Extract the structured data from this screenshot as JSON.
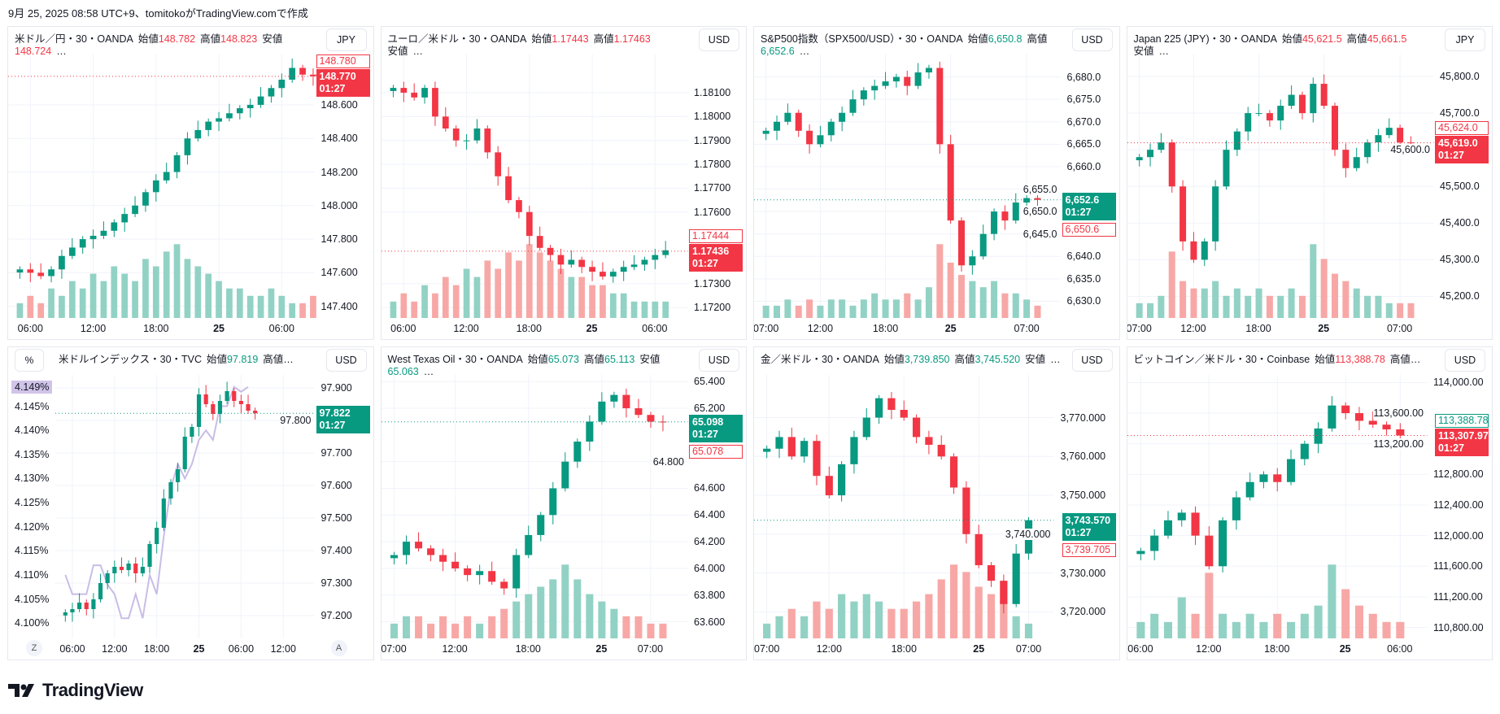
{
  "stamp": "9月 25, 2025 08:58 UTC+9、tomitokoがTradingView.comで作成",
  "logo": "TradingView",
  "colors": {
    "up": "#089981",
    "down": "#f23645",
    "vol_up": "#92d2c5",
    "vol_down": "#f7a8a6",
    "line": "#c9bde6"
  },
  "chart_data": [
    {
      "type": "candlestick",
      "title": "米ドル／円・30・OANDA",
      "open_label": "始値",
      "open": "148.782",
      "high_label": "高値",
      "high": "148.823",
      "low_label": "安値",
      "low": "148.724",
      "ellipsis": "…",
      "value_color": "down",
      "currency": "JPY",
      "ylim": [
        147.35,
        148.9
      ],
      "yticks": [
        "148.600",
        "148.400",
        "148.200",
        "148.000",
        "147.800",
        "147.600",
        "147.400"
      ],
      "x_range": [
        0,
        28
      ],
      "xticks": [
        {
          "label": "06:00",
          "bar": 1
        },
        {
          "label": "12:00",
          "bar": 7
        },
        {
          "label": "18:00",
          "bar": 13
        },
        {
          "label": "25",
          "bar": 19,
          "bold": true
        },
        {
          "label": "06:00",
          "bar": 25
        }
      ],
      "closes": [
        147.62,
        147.6,
        147.58,
        147.62,
        147.7,
        147.75,
        147.8,
        147.82,
        147.85,
        147.9,
        147.95,
        148.0,
        148.08,
        148.15,
        148.2,
        148.3,
        148.4,
        148.45,
        148.5,
        148.52,
        148.55,
        148.58,
        148.6,
        148.65,
        148.7,
        148.75,
        148.82,
        148.78,
        148.77
      ],
      "volume": [
        2,
        3,
        2,
        4,
        3,
        5,
        4,
        6,
        5,
        7,
        6,
        5,
        8,
        7,
        9,
        10,
        8,
        7,
        6,
        5,
        4,
        4,
        3,
        3,
        4,
        3,
        2,
        2,
        3
      ],
      "last": {
        "value": 148.77,
        "label": "148.770",
        "countdown": "01:27",
        "color": "down"
      },
      "prev": {
        "value": 148.78,
        "label": "148.780",
        "color": "down"
      }
    },
    {
      "type": "candlestick",
      "title": "ユーロ／米ドル・30・OANDA",
      "open_label": "始値",
      "open": "1.17443",
      "high_label": "高値",
      "high": "1.17463",
      "low_label": "安値",
      "low": "",
      "ellipsis": "…",
      "value_color": "down",
      "currency": "USD",
      "ylim": [
        1.1717,
        1.1826
      ],
      "yticks": [
        "1.18100",
        "1.18000",
        "1.17900",
        "1.17800",
        "1.17700",
        "1.17600",
        "1.17300",
        "1.17200"
      ],
      "ytick_values": [
        1.181,
        1.18,
        1.179,
        1.178,
        1.177,
        1.176,
        1.173,
        1.172
      ],
      "x_range": [
        0,
        28
      ],
      "xticks": [
        {
          "label": "06:00",
          "bar": 1
        },
        {
          "label": "12:00",
          "bar": 7
        },
        {
          "label": "18:00",
          "bar": 13
        },
        {
          "label": "25",
          "bar": 19,
          "bold": true
        },
        {
          "label": "06:00",
          "bar": 25
        }
      ],
      "closes": [
        1.1812,
        1.181,
        1.1808,
        1.1812,
        1.18,
        1.1795,
        1.179,
        1.179,
        1.1795,
        1.1785,
        1.1775,
        1.1765,
        1.176,
        1.175,
        1.1745,
        1.1742,
        1.1738,
        1.174,
        1.1737,
        1.1735,
        1.1733,
        1.1735,
        1.1737,
        1.1738,
        1.174,
        1.1742,
        1.1744
      ],
      "volume": [
        2,
        3,
        2,
        4,
        3,
        5,
        4,
        6,
        5,
        7,
        6,
        8,
        7,
        9,
        8,
        7,
        6,
        5,
        5,
        4,
        4,
        3,
        3,
        2,
        2,
        2,
        2
      ],
      "last": {
        "value": 1.17436,
        "label": "1.17436",
        "countdown": "01:27",
        "color": "down"
      },
      "prev": {
        "value": 1.17444,
        "label": "1.17444",
        "color": "down"
      }
    },
    {
      "type": "candlestick",
      "title": "S&P500指数（SPX500/USD）・30・OANDA",
      "open_label": "始値",
      "open": "6,650.8",
      "high_label": "高値",
      "high": "6,652.6",
      "ellipsis": "…",
      "value_color": "up",
      "currency": "USD",
      "ylim": [
        6627,
        6685
      ],
      "yticks": [
        "6,680.0",
        "6,675.0",
        "6,670.0",
        "6,665.0",
        "6,660.0",
        "6,655.0",
        "6,650.0",
        "6,645.0",
        "6,640.0",
        "6,635.0",
        "6,630.0"
      ],
      "ytick_values": [
        6680,
        6675,
        6670,
        6665,
        6660,
        6655,
        6650,
        6645,
        6640,
        6635,
        6630
      ],
      "x_range": [
        0,
        27
      ],
      "xticks": [
        {
          "label": "07:00",
          "bar": 0
        },
        {
          "label": "12:00",
          "bar": 5
        },
        {
          "label": "18:00",
          "bar": 11
        },
        {
          "label": "25",
          "bar": 17,
          "bold": true
        },
        {
          "label": "07:00",
          "bar": 24
        }
      ],
      "closes": [
        6668,
        6670,
        6672,
        6668,
        6665,
        6667,
        6670,
        6672,
        6675,
        6677,
        6678,
        6679,
        6680,
        6678,
        6681,
        6682,
        6665,
        6648,
        6638,
        6640,
        6645,
        6650,
        6648,
        6652,
        6653,
        6652.6
      ],
      "volume": [
        2,
        2,
        3,
        2,
        3,
        2,
        3,
        3,
        2,
        3,
        4,
        3,
        3,
        4,
        3,
        5,
        12,
        9,
        7,
        6,
        5,
        6,
        4,
        4,
        3,
        2
      ],
      "last": {
        "value": 6652.6,
        "label": "6,652.6",
        "countdown": "01:27",
        "color": "up"
      },
      "prev": {
        "value": 6650.6,
        "label": "6,650.6",
        "color": "down"
      }
    },
    {
      "type": "candlestick",
      "title": "Japan 225 (JPY)・30・OANDA",
      "open_label": "始値",
      "open": "45,621.5",
      "high_label": "高値",
      "high": "45,661.5",
      "low_label": "安値",
      "low": "",
      "ellipsis": "…",
      "value_color": "down",
      "currency": "JPY",
      "ylim": [
        45150,
        45860
      ],
      "yticks": [
        "45,800.0",
        "45,700.0",
        "45,600.0",
        "45,500.0",
        "45,400.0",
        "45,300.0",
        "45,200.0"
      ],
      "ytick_values": [
        45800,
        45700,
        45600,
        45500,
        45400,
        45300,
        45200
      ],
      "x_range": [
        0,
        27
      ],
      "xticks": [
        {
          "label": "07:00",
          "bar": 0
        },
        {
          "label": "12:00",
          "bar": 5
        },
        {
          "label": "18:00",
          "bar": 11
        },
        {
          "label": "25",
          "bar": 17,
          "bold": true
        },
        {
          "label": "07:00",
          "bar": 24
        }
      ],
      "closes": [
        45580,
        45600,
        45620,
        45500,
        45350,
        45300,
        45350,
        45500,
        45600,
        45650,
        45700,
        45700,
        45680,
        45720,
        45750,
        45700,
        45780,
        45720,
        45600,
        45550,
        45580,
        45620,
        45640,
        45660,
        45620,
        45619
      ],
      "volume": [
        2,
        2,
        3,
        9,
        5,
        4,
        4,
        5,
        3,
        4,
        3,
        4,
        3,
        3,
        4,
        3,
        10,
        8,
        6,
        5,
        4,
        3,
        3,
        2,
        2,
        2
      ],
      "last": {
        "value": 45619,
        "label": "45,619.0",
        "countdown": "01:27",
        "color": "down"
      },
      "prev": {
        "value": 45624,
        "label": "45,624.0",
        "color": "down"
      }
    },
    {
      "type": "candlestick",
      "title": "米ドルインデックス・30・TVC",
      "open_label": "始値",
      "open": "97.819",
      "high_label": "高値",
      "ellipsis": "…",
      "value_color": "up",
      "currency": "USD",
      "left_axis_button": "%",
      "ylim": [
        97.14,
        97.94
      ],
      "yticks": [
        "97.900",
        "97.800",
        "97.700",
        "97.600",
        "97.500",
        "97.400",
        "97.300",
        "97.200"
      ],
      "x_range": [
        0,
        35
      ],
      "xticks": [
        {
          "label": "06:00",
          "bar": 1
        },
        {
          "label": "12:00",
          "bar": 7
        },
        {
          "label": "18:00",
          "bar": 13
        },
        {
          "label": "25",
          "bar": 19,
          "bold": true
        },
        {
          "label": "06:00",
          "bar": 25
        },
        {
          "label": "12:00",
          "bar": 31
        }
      ],
      "closes": [
        97.21,
        97.22,
        97.24,
        97.22,
        97.25,
        97.3,
        97.33,
        97.35,
        97.34,
        97.36,
        97.33,
        97.35,
        97.42,
        97.47,
        97.56,
        97.61,
        97.65,
        97.75,
        97.78,
        97.88,
        97.85,
        97.82,
        97.86,
        97.89,
        97.86,
        97.85,
        97.83,
        97.822
      ],
      "overlay": {
        "ylim": [
          4.0975,
          4.1515
        ],
        "yticks": [
          "4.145%",
          "4.140%",
          "4.135%",
          "4.130%",
          "4.125%",
          "4.120%",
          "4.115%",
          "4.110%",
          "4.105%",
          "4.100%"
        ],
        "ytick_values": [
          4.145,
          4.14,
          4.135,
          4.13,
          4.125,
          4.12,
          4.115,
          4.11,
          4.105,
          4.1
        ],
        "values": [
          4.11,
          4.106,
          4.106,
          4.106,
          4.112,
          4.112,
          4.108,
          4.106,
          4.101,
          4.101,
          4.106,
          4.101,
          4.11,
          4.106,
          4.118,
          4.128,
          4.133,
          4.13,
          4.133,
          4.138,
          4.14,
          4.138,
          4.145,
          4.145,
          4.149,
          4.148,
          4.149
        ],
        "last_label": "4.149%"
      },
      "axis_buttons": [
        "Z",
        "A"
      ],
      "last": {
        "value": 97.822,
        "label": "97.822",
        "countdown": "01:27",
        "color": "up"
      }
    },
    {
      "type": "candlestick",
      "title": "West Texas Oil・30・OANDA",
      "open_label": "始値",
      "open": "65.073",
      "high_label": "高値",
      "high": "65.113",
      "low_label": "安値",
      "low": "65.063",
      "ellipsis": "…",
      "value_color": "up",
      "currency": "USD",
      "ylim": [
        63.5,
        65.45
      ],
      "yticks": [
        "65.400",
        "65.200",
        "64.800",
        "64.600",
        "64.400",
        "64.200",
        "64.000",
        "63.800",
        "63.600"
      ],
      "ytick_values": [
        65.4,
        65.2,
        64.8,
        64.6,
        64.4,
        64.2,
        64.0,
        63.8,
        63.6
      ],
      "x_range": [
        0,
        24
      ],
      "xticks": [
        {
          "label": "07:00",
          "bar": 0
        },
        {
          "label": "12:00",
          "bar": 5
        },
        {
          "label": "18:00",
          "bar": 11
        },
        {
          "label": "25",
          "bar": 17,
          "bold": true
        },
        {
          "label": "07:00",
          "bar": 21
        }
      ],
      "closes": [
        64.1,
        64.2,
        64.15,
        64.1,
        64.05,
        64.0,
        63.95,
        63.98,
        63.9,
        63.85,
        64.1,
        64.25,
        64.4,
        64.6,
        64.8,
        64.95,
        65.1,
        65.25,
        65.3,
        65.2,
        65.15,
        65.1,
        65.098
      ],
      "volume": [
        2,
        3,
        3,
        2,
        3,
        2,
        3,
        2,
        3,
        4,
        5,
        6,
        7,
        8,
        10,
        8,
        6,
        5,
        4,
        3,
        3,
        2,
        2
      ],
      "last": {
        "value": 65.098,
        "label": "65.098",
        "countdown": "01:27",
        "color": "up"
      },
      "prev": {
        "value": 65.078,
        "label": "65.078",
        "color": "down"
      }
    },
    {
      "type": "candlestick",
      "title": "金／米ドル・30・OANDA",
      "open_label": "始値",
      "open": "3,739.850",
      "high_label": "高値",
      "high": "3,745.520",
      "low_label": "安値",
      "low": "",
      "ellipsis": "…",
      "value_color": "up",
      "currency": "USD",
      "ylim": [
        3714,
        3781
      ],
      "yticks": [
        "3,770.000",
        "3,760.000",
        "3,750.000",
        "3,740.000",
        "3,730.000",
        "3,720.000"
      ],
      "ytick_values": [
        3770,
        3760,
        3750,
        3740,
        3730,
        3720
      ],
      "x_range": [
        0,
        23
      ],
      "xticks": [
        {
          "label": "07:00",
          "bar": 0
        },
        {
          "label": "12:00",
          "bar": 5
        },
        {
          "label": "18:00",
          "bar": 11
        },
        {
          "label": "25",
          "bar": 17,
          "bold": true
        },
        {
          "label": "07:00",
          "bar": 21
        }
      ],
      "closes": [
        3762,
        3765,
        3760,
        3764,
        3755,
        3750,
        3758,
        3765,
        3770,
        3775,
        3772,
        3770,
        3765,
        3763,
        3760,
        3752,
        3740,
        3732,
        3728,
        3722,
        3735,
        3743.57
      ],
      "volume": [
        2,
        3,
        4,
        3,
        5,
        4,
        6,
        5,
        6,
        5,
        4,
        4,
        5,
        6,
        8,
        10,
        9,
        7,
        6,
        5,
        3,
        2
      ],
      "last": {
        "value": 3743.57,
        "label": "3,743.570",
        "countdown": "01:27",
        "color": "up"
      },
      "prev": {
        "value": 3739.705,
        "label": "3,739.705",
        "color": "down"
      }
    },
    {
      "type": "candlestick",
      "title": "ビットコイン／米ドル・30・Coinbase",
      "open_label": "始値",
      "open": "113,388.78",
      "high_label": "高値",
      "ellipsis": "…",
      "value_color": "down",
      "currency": "USD",
      "ylim": [
        110700,
        114100
      ],
      "yticks": [
        "114,000.00",
        "113,600.00",
        "113,200.00",
        "112,800.00",
        "112,400.00",
        "112,000.00",
        "111,600.00",
        "111,200.00",
        "110,800.00"
      ],
      "ytick_values": [
        114000,
        113600,
        113200,
        112800,
        112400,
        112000,
        111600,
        111200,
        110800
      ],
      "x_range": [
        0,
        21
      ],
      "xticks": [
        {
          "label": "06:00",
          "bar": 0
        },
        {
          "label": "12:00",
          "bar": 5
        },
        {
          "label": "18:00",
          "bar": 10
        },
        {
          "label": "25",
          "bar": 15,
          "bold": true
        },
        {
          "label": "06:00",
          "bar": 19
        }
      ],
      "closes": [
        111800,
        112000,
        112200,
        112300,
        112000,
        111600,
        112200,
        112500,
        112700,
        112800,
        112700,
        113000,
        113200,
        113400,
        113700,
        113600,
        113500,
        113450,
        113388,
        113308
      ],
      "volume": [
        2,
        3,
        2,
        5,
        3,
        8,
        3,
        2,
        3,
        2,
        3,
        2,
        3,
        4,
        9,
        6,
        4,
        3,
        2,
        2
      ],
      "last": {
        "value": 113307.97,
        "label": "113,307.97",
        "countdown": "01:27",
        "color": "down"
      },
      "prev": {
        "value": 113388.78,
        "label": "113,388.78",
        "color": "up"
      }
    }
  ]
}
